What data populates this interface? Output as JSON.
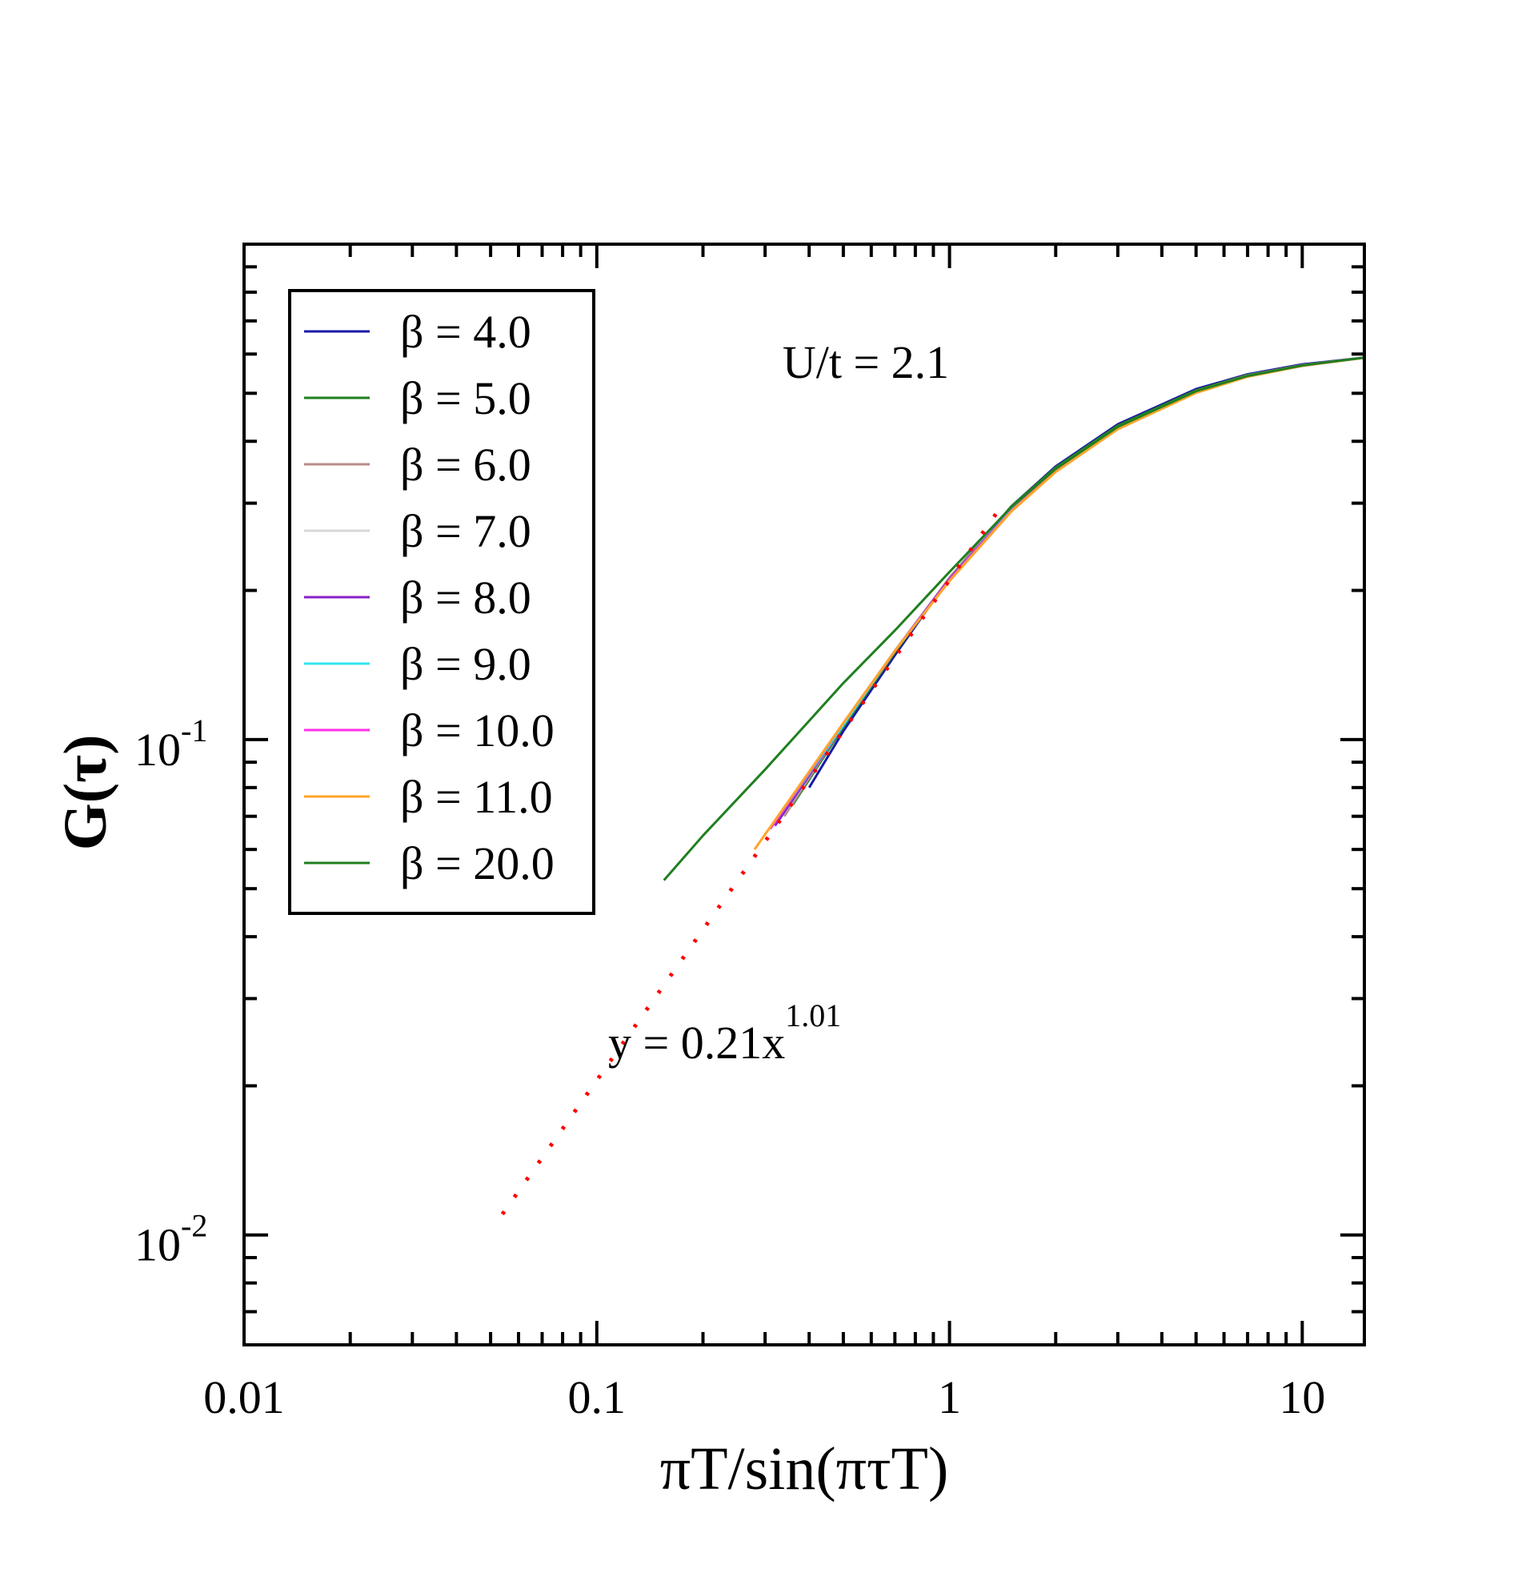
{
  "chart_data": {
    "type": "line",
    "title": "",
    "xlabel": "πT/sin(πτT)",
    "ylabel": "G(τ)",
    "xscale": "log",
    "yscale": "log",
    "xlim": [
      0.01,
      15
    ],
    "ylim": [
      0.006,
      1.0
    ],
    "x_tick_labels": [
      {
        "value": 0.01,
        "label": "0.01"
      },
      {
        "value": 0.1,
        "label": "0.1"
      },
      {
        "value": 1,
        "label": "1"
      },
      {
        "value": 10,
        "label": "10"
      }
    ],
    "y_tick_labels": [
      {
        "value": 0.1,
        "base": "10",
        "exp": "-1"
      },
      {
        "value": 0.01,
        "base": "10",
        "exp": "-2"
      }
    ],
    "annotation": "U/t = 2.1",
    "fit_label": {
      "prefix": "y = 0.21x",
      "exponent": "1.01"
    },
    "fit": {
      "name": "fit",
      "color": "#ff0000",
      "prefactor": 0.21,
      "exponent": 1.01,
      "x_range": [
        0.054,
        1.4
      ]
    },
    "legend_location": "top-left",
    "series": [
      {
        "name": "β = 4.0",
        "color": "#1a1aa6",
        "x": [
          0.4,
          0.5,
          0.7,
          1.0,
          1.5,
          2.0,
          3.0,
          5.0,
          7.0,
          10.0,
          15.0
        ],
        "y": [
          0.08,
          0.104,
          0.148,
          0.212,
          0.296,
          0.356,
          0.433,
          0.51,
          0.546,
          0.572,
          0.59
        ]
      },
      {
        "name": "β = 5.0",
        "color": "#1f7f1f",
        "x": [
          0.36,
          0.5,
          0.7,
          1.0,
          1.5,
          2.0,
          3.0,
          5.0,
          7.0,
          10.0,
          15.0
        ],
        "y": [
          0.074,
          0.106,
          0.15,
          0.212,
          0.296,
          0.354,
          0.43,
          0.507,
          0.544,
          0.57,
          0.59
        ]
      },
      {
        "name": "β = 6.0",
        "color": "#b88b88",
        "x": [
          0.34,
          0.5,
          0.7,
          1.0,
          1.5,
          2.0,
          3.0,
          5.0,
          7.0,
          10.0,
          15.0
        ],
        "y": [
          0.07,
          0.107,
          0.151,
          0.212,
          0.294,
          0.352,
          0.428,
          0.505,
          0.543,
          0.57,
          0.59
        ]
      },
      {
        "name": "β = 7.0",
        "color": "#d8d8d8",
        "x": [
          0.33,
          0.5,
          0.7,
          1.0,
          1.5,
          2.0,
          3.0,
          5.0,
          7.0,
          10.0,
          15.0
        ],
        "y": [
          0.069,
          0.107,
          0.151,
          0.211,
          0.293,
          0.351,
          0.427,
          0.504,
          0.542,
          0.569,
          0.59
        ]
      },
      {
        "name": "β = 8.0",
        "color": "#8a1fc9",
        "x": [
          0.32,
          0.5,
          0.7,
          1.0,
          1.5,
          2.0,
          3.0,
          5.0,
          7.0,
          10.0,
          15.0
        ],
        "y": [
          0.067,
          0.107,
          0.151,
          0.211,
          0.292,
          0.35,
          0.426,
          0.503,
          0.542,
          0.569,
          0.59
        ]
      },
      {
        "name": "β = 9.0",
        "color": "#2fe6f0",
        "x": [
          0.31,
          0.5,
          0.7,
          1.0,
          1.5,
          2.0,
          3.0,
          5.0,
          7.0,
          10.0,
          15.0
        ],
        "y": [
          0.066,
          0.107,
          0.151,
          0.21,
          0.291,
          0.349,
          0.425,
          0.502,
          0.541,
          0.568,
          0.59
        ]
      },
      {
        "name": "β = 10.0",
        "color": "#ff2ee6",
        "x": [
          0.31,
          0.5,
          0.7,
          1.0,
          1.5,
          2.0,
          3.0,
          5.0,
          7.0,
          10.0,
          15.0
        ],
        "y": [
          0.066,
          0.108,
          0.151,
          0.21,
          0.29,
          0.348,
          0.424,
          0.502,
          0.541,
          0.568,
          0.59
        ]
      },
      {
        "name": "β = 11.0",
        "color": "#ffa528",
        "x": [
          0.28,
          0.5,
          0.7,
          1.0,
          1.5,
          2.0,
          3.0,
          5.0,
          7.0,
          10.0,
          15.0
        ],
        "y": [
          0.06,
          0.108,
          0.151,
          0.209,
          0.289,
          0.347,
          0.423,
          0.501,
          0.54,
          0.568,
          0.59
        ]
      },
      {
        "name": "β = 20.0",
        "color": "#1f7f1f",
        "x": [
          0.155,
          0.2,
          0.3,
          0.5,
          0.7,
          1.0,
          1.5,
          2.0,
          3.0,
          5.0,
          7.0,
          10.0,
          15.0
        ],
        "y": [
          0.052,
          0.064,
          0.087,
          0.13,
          0.166,
          0.218,
          0.295,
          0.352,
          0.428,
          0.505,
          0.542,
          0.569,
          0.59
        ]
      }
    ]
  }
}
